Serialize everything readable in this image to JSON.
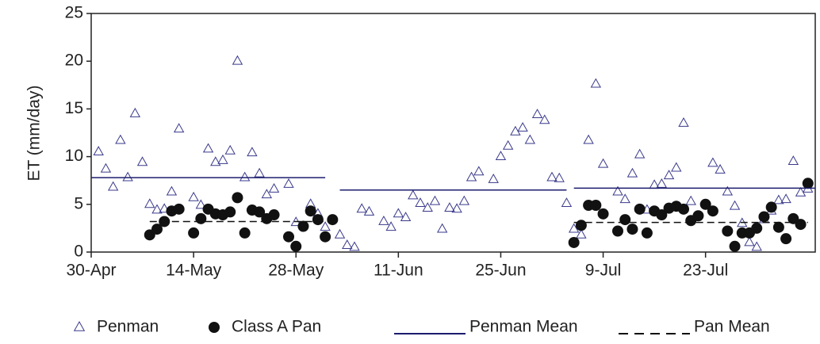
{
  "chart_data": {
    "type": "scatter",
    "y_label": "ET (mm/day)",
    "xlim": [
      0,
      99
    ],
    "ylim": [
      0,
      25
    ],
    "yticks": [
      0,
      5,
      10,
      15,
      20,
      25
    ],
    "xticks": [
      {
        "value": 0,
        "label": "30-Apr"
      },
      {
        "value": 14,
        "label": "14-May"
      },
      {
        "value": 28,
        "label": "28-May"
      },
      {
        "value": 42,
        "label": "11-Jun"
      },
      {
        "value": 56,
        "label": "25-Jun"
      },
      {
        "value": 70,
        "label": "9-Jul"
      },
      {
        "value": 84,
        "label": "23-Jul"
      }
    ],
    "series": [
      {
        "name": "Penman",
        "marker": "triangle",
        "color": "#3a3a8c",
        "x": [
          1,
          2,
          3,
          4,
          5,
          6,
          7,
          8,
          9,
          10,
          11,
          12,
          14,
          15,
          16,
          17,
          18,
          19,
          20,
          21,
          22,
          23,
          24,
          25,
          27,
          28,
          30,
          31,
          32,
          34,
          35,
          36,
          37,
          38,
          40,
          41,
          42,
          43,
          44,
          45,
          46,
          47,
          48,
          49,
          50,
          51,
          52,
          53,
          55,
          56,
          57,
          58,
          59,
          60,
          61,
          62,
          63,
          64,
          65,
          66,
          67,
          68,
          69,
          70,
          72,
          73,
          74,
          75,
          76,
          77,
          78,
          79,
          80,
          81,
          82,
          85,
          86,
          87,
          88,
          89,
          90,
          91,
          92,
          93,
          94,
          95,
          96,
          97,
          98
        ],
        "values": [
          10.5,
          8.7,
          6.8,
          11.7,
          7.8,
          14.5,
          9.4,
          5.0,
          4.4,
          4.5,
          6.3,
          12.9,
          5.7,
          4.9,
          10.8,
          9.4,
          9.6,
          10.6,
          20.0,
          7.8,
          10.4,
          8.2,
          6.0,
          6.6,
          7.1,
          3.1,
          5.0,
          4.0,
          2.6,
          1.8,
          0.7,
          0.5,
          4.5,
          4.2,
          3.2,
          2.6,
          4.0,
          3.6,
          5.9,
          5.1,
          4.6,
          5.3,
          2.4,
          4.6,
          4.5,
          5.3,
          7.8,
          8.4,
          7.6,
          10.0,
          11.1,
          12.6,
          13.0,
          11.7,
          14.4,
          13.8,
          7.8,
          7.7,
          5.1,
          2.4,
          1.8,
          11.7,
          17.6,
          9.2,
          6.3,
          5.5,
          8.2,
          10.2,
          4.4,
          7.0,
          7.1,
          8.0,
          8.8,
          13.5,
          5.3,
          9.3,
          8.6,
          6.3,
          4.8,
          3.0,
          1.0,
          0.5,
          3.4,
          4.3,
          5.4,
          5.5,
          9.5,
          6.2,
          6.6
        ]
      },
      {
        "name": "Class A Pan",
        "marker": "circle",
        "color": "#111111",
        "x": [
          8,
          9,
          10,
          11,
          12,
          14,
          15,
          16,
          17,
          18,
          19,
          20,
          21,
          22,
          23,
          24,
          25,
          27,
          28,
          29,
          30,
          31,
          32,
          33,
          66,
          67,
          68,
          69,
          70,
          72,
          73,
          74,
          75,
          76,
          77,
          78,
          79,
          80,
          81,
          82,
          83,
          84,
          85,
          87,
          88,
          89,
          90,
          91,
          92,
          93,
          94,
          95,
          96,
          97,
          98
        ],
        "values": [
          1.8,
          2.4,
          3.2,
          4.3,
          4.5,
          2.0,
          3.5,
          4.5,
          4.0,
          3.9,
          4.2,
          5.7,
          2.0,
          4.4,
          4.2,
          3.5,
          3.9,
          1.6,
          0.6,
          2.7,
          4.3,
          3.4,
          1.6,
          3.4,
          1.0,
          2.8,
          4.9,
          4.9,
          4.0,
          2.2,
          3.4,
          2.4,
          4.5,
          2.0,
          4.3,
          3.9,
          4.6,
          4.8,
          4.5,
          3.3,
          3.8,
          5.0,
          4.3,
          2.2,
          0.6,
          2.0,
          2.0,
          2.5,
          3.7,
          4.7,
          2.6,
          1.4,
          3.5,
          2.9,
          7.2
        ]
      },
      {
        "name": "Penman Mean",
        "marker": "line",
        "dash": "solid",
        "color": "#1c1c6e",
        "segments": [
          {
            "x": [
              0,
              32
            ],
            "values": [
              7.8,
              7.8
            ]
          },
          {
            "x": [
              34,
              65
            ],
            "values": [
              6.5,
              6.5
            ]
          },
          {
            "x": [
              66,
              99
            ],
            "values": [
              6.7,
              6.7
            ]
          }
        ]
      },
      {
        "name": "Pan Mean",
        "marker": "line",
        "dash": "dashed",
        "color": "#111111",
        "segments": [
          {
            "x": [
              8,
              33
            ],
            "values": [
              3.2,
              3.2
            ]
          },
          {
            "x": [
              66,
              98
            ],
            "values": [
              3.1,
              3.1
            ]
          }
        ]
      }
    ]
  }
}
